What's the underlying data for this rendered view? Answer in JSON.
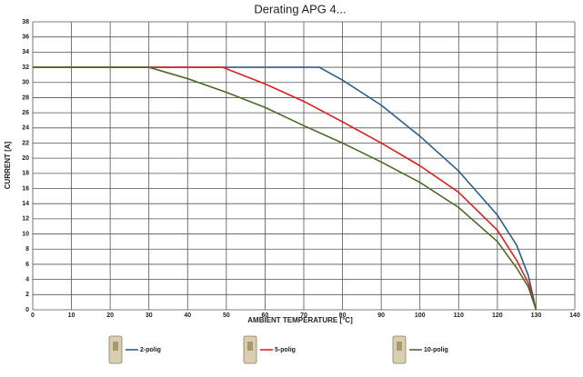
{
  "chart_data": {
    "type": "line",
    "title": "Derating APG 4...",
    "xlabel": "AMBIENT TEMPERATURE [°C]",
    "ylabel": "CURRENT [A]",
    "xlim": [
      0,
      140
    ],
    "xticks": [
      0,
      10,
      20,
      30,
      40,
      50,
      60,
      70,
      80,
      90,
      100,
      110,
      120,
      130,
      140
    ],
    "ylim": [
      0,
      38
    ],
    "yticks": [
      0,
      2,
      4,
      6,
      8,
      10,
      12,
      14,
      16,
      18,
      20,
      22,
      24,
      26,
      28,
      30,
      32,
      34,
      36,
      38
    ],
    "grid": true,
    "legend": "bottom",
    "series": [
      {
        "name": "2-polig",
        "color": "#2e5c8a",
        "x": [
          0,
          74,
          80,
          90,
          100,
          110,
          120,
          125,
          128,
          130
        ],
        "values": [
          32,
          32,
          30.3,
          27,
          22.9,
          18.3,
          12.5,
          8.5,
          4.5,
          0
        ]
      },
      {
        "name": "5-polig",
        "color": "#e0201f",
        "x": [
          0,
          49,
          60,
          70,
          80,
          90,
          100,
          110,
          120,
          125,
          128,
          130
        ],
        "values": [
          32,
          32,
          29.8,
          27.5,
          24.8,
          22,
          19,
          15.5,
          10.5,
          6.5,
          3.5,
          0
        ]
      },
      {
        "name": "10-polig",
        "color": "#4a6b2a",
        "x": [
          0,
          30,
          40,
          50,
          60,
          70,
          80,
          90,
          100,
          110,
          120,
          125,
          128,
          130
        ],
        "values": [
          32,
          32,
          30.5,
          28.7,
          26.7,
          24.3,
          22,
          19.5,
          16.8,
          13.5,
          9,
          5.5,
          3,
          0
        ]
      }
    ]
  }
}
